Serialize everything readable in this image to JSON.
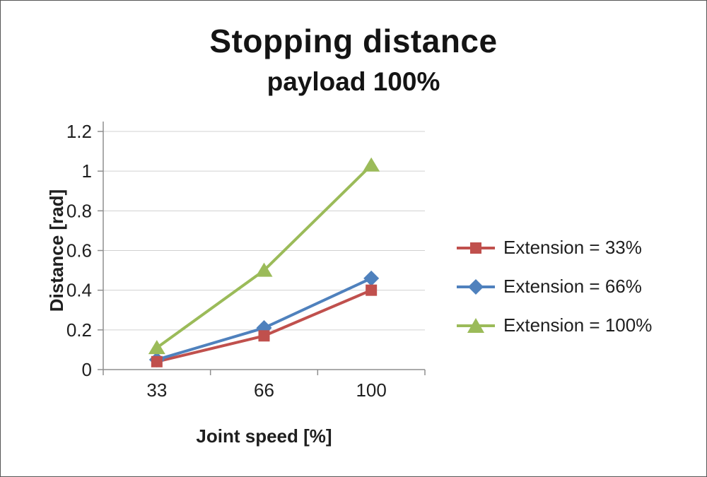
{
  "chart_data": {
    "type": "line",
    "title": "Stopping distance",
    "subtitle": "payload 100%",
    "categories": [
      "33",
      "66",
      "100"
    ],
    "xlabel": "Joint speed [%]",
    "ylabel": "Distance [rad]",
    "ylim": [
      0,
      1.2
    ],
    "y_ticks": [
      "0",
      "0.2",
      "0.4",
      "0.6",
      "0.8",
      "1",
      "1.2"
    ],
    "grid": true,
    "legend_position": "right",
    "colors": {
      "axis": "#8f8f8f",
      "gridline": "#d0d0d0",
      "text": "#1f1f1f"
    },
    "series": [
      {
        "name": "Extension = 33%",
        "marker": "square",
        "color": "#c0504d",
        "values": [
          0.04,
          0.17,
          0.4
        ]
      },
      {
        "name": "Extension = 66%",
        "marker": "diamond",
        "color": "#4f81bd",
        "values": [
          0.05,
          0.21,
          0.46
        ]
      },
      {
        "name": "Extension = 100%",
        "marker": "triangle",
        "color": "#9bbb59",
        "values": [
          0.11,
          0.5,
          1.03
        ]
      }
    ]
  }
}
